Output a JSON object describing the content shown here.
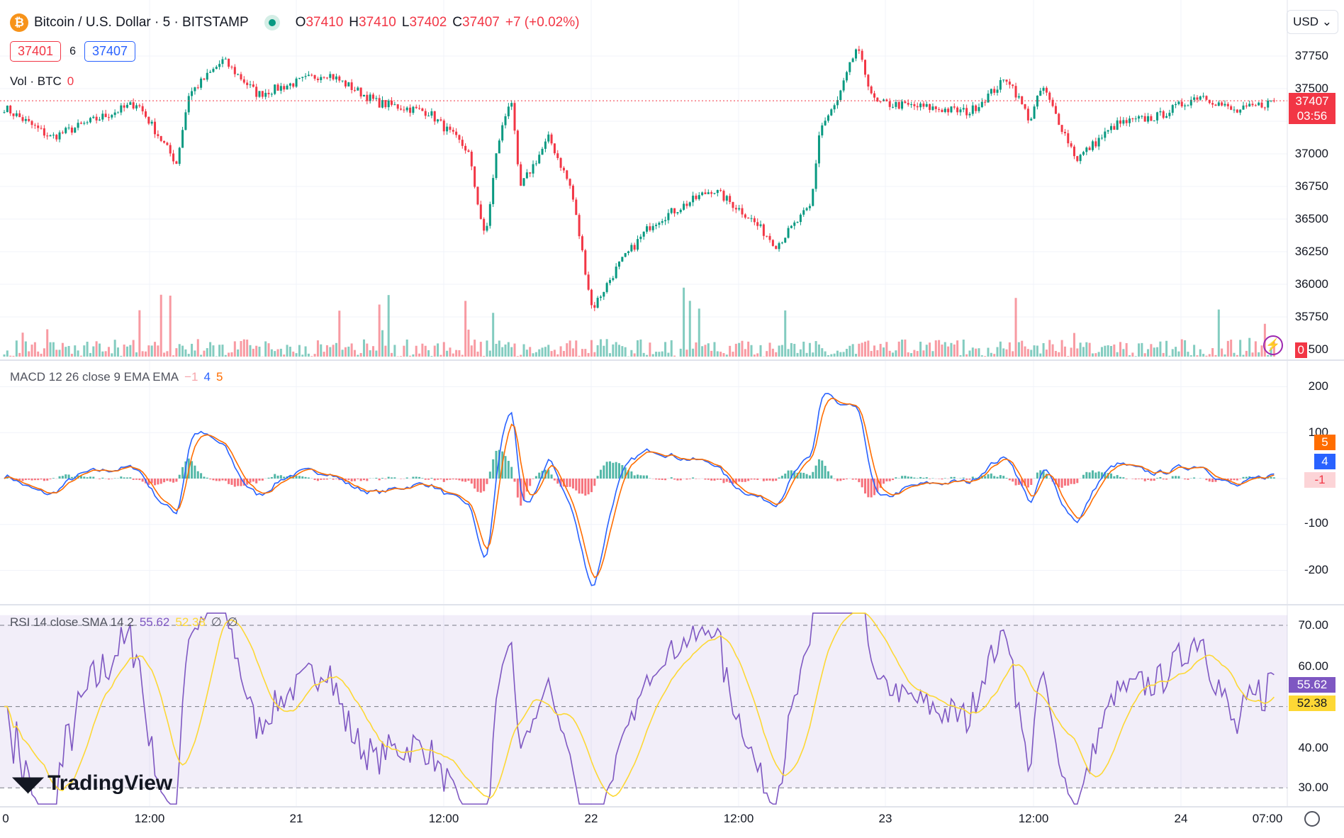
{
  "header": {
    "symbol": "Bitcoin / U.S. Dollar · 5 · BITSTAMP",
    "coin_icon": "bitcoin-icon",
    "o_label": "O",
    "o": "37410",
    "h_label": "H",
    "h": "37410",
    "l_label": "L",
    "l": "37402",
    "c_label": "C",
    "c": "37407",
    "change": "+7 (+0.02%)",
    "bid": "37401",
    "spread": "6",
    "ask": "37407",
    "vol_label": "Vol · BTC",
    "vol_value": "0"
  },
  "currency": "USD",
  "macd_legend": {
    "label": "MACD 12 26 close 9 EMA EMA",
    "hist": "−1",
    "macd": "4",
    "signal": "5"
  },
  "rsi_legend": {
    "label": "RSI 14 close SMA 14 2",
    "rsi": "55.62",
    "sma": "52.38",
    "v3": "∅",
    "v4": "∅"
  },
  "price_axis": [
    "37750",
    "37500",
    "37000",
    "36750",
    "36500",
    "36250",
    "36000",
    "35750",
    "500"
  ],
  "price_tag": {
    "price": "37407",
    "countdown": "03:56"
  },
  "vol_tag": "0",
  "macd_axis": [
    "200",
    "100",
    "-100",
    "-200"
  ],
  "macd_tags": {
    "signal": "5",
    "macd": "4",
    "hist": "-1"
  },
  "rsi_axis": [
    "70.00",
    "60.00",
    "40.00",
    "30.00"
  ],
  "rsi_tags": {
    "rsi": "55.62",
    "sma": "52.38"
  },
  "time_axis": [
    "0",
    "12:00",
    "21",
    "12:00",
    "22",
    "12:00",
    "23",
    "12:00",
    "24",
    "07:00"
  ],
  "watermark": "TradingView",
  "colors": {
    "up": "#089981",
    "down": "#f23645",
    "macd": "#2962ff",
    "signal": "#ff6d00",
    "rsi": "#7e57c2",
    "rsi_sma": "#fdd835"
  },
  "chart_data": [
    {
      "type": "candlestick",
      "title": "Bitcoin / U.S. Dollar · 5 · BITSTAMP",
      "ylim": [
        35650,
        37900
      ],
      "x_hours": [
        0,
        3.8,
        10.8,
        14,
        15,
        17.8,
        20.6,
        26.2,
        30.4,
        34.5,
        37.7,
        39.1,
        40.1,
        41.2,
        41.9,
        44.3,
        46.1,
        47.8,
        49.9,
        52.7,
        57.6,
        60.4,
        62.8,
        65.6,
        66.3,
        67.7,
        69.3,
        70.8,
        75,
        78.5,
        81.6,
        83.4,
        84.4,
        87.2,
        90.4,
        93.9,
        97.3,
        100.1,
        103.3
      ],
      "close_path": [
        37355,
        37125,
        37390,
        36930,
        37455,
        37717,
        37455,
        37620,
        37390,
        37320,
        37025,
        36335,
        37060,
        37455,
        36730,
        37125,
        36730,
        35810,
        36140,
        36470,
        36730,
        36530,
        36300,
        36600,
        37190,
        37390,
        37815,
        37390,
        37355,
        37320,
        37585,
        37255,
        37520,
        36960,
        37225,
        37290,
        37455,
        37320,
        37407
      ],
      "last": 37407
    },
    {
      "type": "line",
      "title": "MACD 12 26 close 9 EMA EMA",
      "ylim": [
        -230,
        230
      ],
      "series": [
        {
          "name": "MACD",
          "last": 4
        },
        {
          "name": "Signal",
          "last": 5
        },
        {
          "name": "Histogram",
          "last": -1
        }
      ]
    },
    {
      "type": "line",
      "title": "RSI 14 close SMA 14 2",
      "ylim": [
        25,
        75
      ],
      "bands": [
        70,
        50,
        30
      ],
      "series": [
        {
          "name": "RSI",
          "last": 55.62
        },
        {
          "name": "SMA",
          "last": 52.38
        }
      ]
    }
  ]
}
